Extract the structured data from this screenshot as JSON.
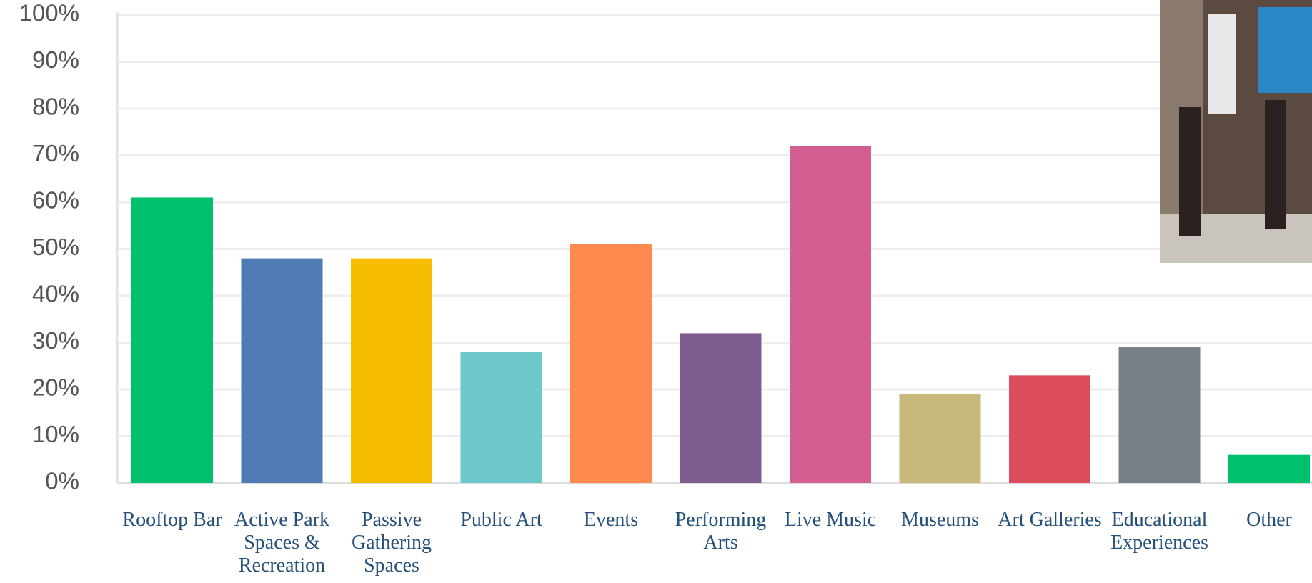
{
  "chart_data": {
    "type": "bar",
    "categories": [
      "Rooftop Bar",
      "Active Park Spaces & Recreation",
      "Passive Gathering Spaces",
      "Public Art",
      "Events",
      "Performing Arts",
      "Live Music",
      "Museums",
      "Art Galleries",
      "Educational Experiences",
      "Other"
    ],
    "values": [
      61,
      48,
      48,
      28,
      51,
      32,
      72,
      19,
      23,
      29,
      6
    ],
    "colors": [
      "#00c06b",
      "#4f7bb5",
      "#f7bd00",
      "#6dc8cc",
      "#ff8a50",
      "#7d5d8f",
      "#d45e8f",
      "#c8b87a",
      "#dd4c5c",
      "#787e86",
      "#00c06b"
    ],
    "ylim": [
      0,
      100
    ],
    "yticks": [
      {
        "value": 0,
        "label": "0%"
      },
      {
        "value": 10,
        "label": "10%"
      },
      {
        "value": 20,
        "label": "20%"
      },
      {
        "value": 30,
        "label": "30%"
      },
      {
        "value": 40,
        "label": "40%"
      },
      {
        "value": 50,
        "label": "50%"
      },
      {
        "value": 60,
        "label": "60%"
      },
      {
        "value": 70,
        "label": "70%"
      },
      {
        "value": 80,
        "label": "80%"
      },
      {
        "value": 90,
        "label": "90%"
      },
      {
        "value": 100,
        "label": "100%"
      }
    ],
    "grid": true
  }
}
